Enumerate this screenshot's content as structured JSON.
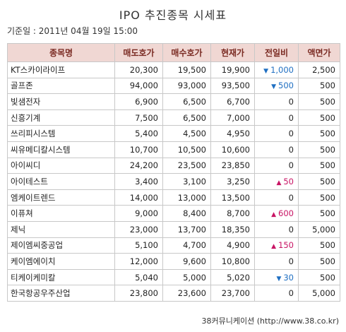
{
  "title": "IPO 추진종목 시세표",
  "base_time": "기준일 : 2011년 04월 19일 15:00",
  "columns": [
    "종목명",
    "매도호가",
    "매수호가",
    "현재가",
    "전일비",
    "액면가"
  ],
  "rows": [
    {
      "name": "KT스카이라이프",
      "ask": "20,300",
      "bid": "19,500",
      "price": "19,900",
      "dir": "down",
      "change": "1,000",
      "par": "2,500"
    },
    {
      "name": "골프존",
      "ask": "94,000",
      "bid": "93,000",
      "price": "93,500",
      "dir": "down",
      "change": "500",
      "par": "500"
    },
    {
      "name": "빛샘전자",
      "ask": "6,900",
      "bid": "6,500",
      "price": "6,700",
      "dir": "",
      "change": "0",
      "par": "500"
    },
    {
      "name": "신흥기계",
      "ask": "7,500",
      "bid": "6,500",
      "price": "7,000",
      "dir": "",
      "change": "0",
      "par": "500"
    },
    {
      "name": "쓰리피시스템",
      "ask": "5,400",
      "bid": "4,500",
      "price": "4,950",
      "dir": "",
      "change": "0",
      "par": "500"
    },
    {
      "name": "씨유메디칼시스템",
      "ask": "10,700",
      "bid": "10,500",
      "price": "10,600",
      "dir": "",
      "change": "0",
      "par": "500"
    },
    {
      "name": "아이씨디",
      "ask": "24,200",
      "bid": "23,500",
      "price": "23,850",
      "dir": "",
      "change": "0",
      "par": "500"
    },
    {
      "name": "아이테스트",
      "ask": "3,400",
      "bid": "3,100",
      "price": "3,250",
      "dir": "up",
      "change": "50",
      "par": "500"
    },
    {
      "name": "엠케이트렌드",
      "ask": "14,000",
      "bid": "13,000",
      "price": "13,500",
      "dir": "",
      "change": "0",
      "par": "500"
    },
    {
      "name": "이퓨쳐",
      "ask": "9,000",
      "bid": "8,400",
      "price": "8,700",
      "dir": "up",
      "change": "600",
      "par": "500"
    },
    {
      "name": "제닉",
      "ask": "23,000",
      "bid": "13,700",
      "price": "18,350",
      "dir": "",
      "change": "0",
      "par": "5,000"
    },
    {
      "name": "제이엠씨중공업",
      "ask": "5,100",
      "bid": "4,700",
      "price": "4,900",
      "dir": "up",
      "change": "150",
      "par": "500"
    },
    {
      "name": "케이엠에이치",
      "ask": "12,000",
      "bid": "9,600",
      "price": "10,800",
      "dir": "",
      "change": "0",
      "par": "500"
    },
    {
      "name": "티케이케미칼",
      "ask": "5,040",
      "bid": "5,000",
      "price": "5,020",
      "dir": "down",
      "change": "30",
      "par": "500"
    },
    {
      "name": "한국항공우주산업",
      "ask": "23,800",
      "bid": "23,600",
      "price": "23,700",
      "dir": "",
      "change": "0",
      "par": "5,000"
    }
  ],
  "footer": "38커뮤니케이션 (http://www.38.co.kr)",
  "colors": {
    "header_bg": "#f0d7d3",
    "header_text": "#7a2a22",
    "up": "#c81464",
    "down": "#1f6fc2"
  },
  "icons": {
    "up": "up-triangle-icon",
    "down": "down-triangle-icon"
  }
}
